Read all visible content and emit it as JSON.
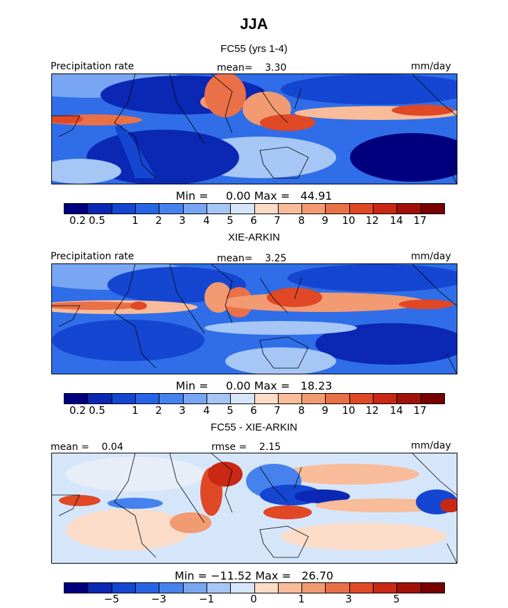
{
  "season_title": "JJA",
  "panels": [
    {
      "title": "FC55 (yrs 1-4)",
      "left_label": "Precipitation rate",
      "center_label": "mean=    3.30",
      "right_label": "mm/day",
      "stats": "Min =     0.00 Max =   44.91",
      "colorbar_ticks": [
        "0.2",
        "0.5",
        "1",
        "2",
        "3",
        "4",
        "5",
        "6",
        "7",
        "8",
        "9",
        "10",
        "12",
        "14",
        "17"
      ],
      "palette": "precip"
    },
    {
      "title": "XIE-ARKIN",
      "left_label": "Precipitation rate",
      "center_label": "mean=    3.25",
      "right_label": "mm/day",
      "stats": "Min =     0.00 Max =   18.23",
      "colorbar_ticks": [
        "0.2",
        "0.5",
        "1",
        "2",
        "3",
        "4",
        "5",
        "6",
        "7",
        "8",
        "9",
        "10",
        "12",
        "14",
        "17"
      ],
      "palette": "precip"
    },
    {
      "title": "FC55 - XIE-ARKIN",
      "left_label": "mean =    0.04",
      "center_label": "rmse =    2.15",
      "right_label": "mm/day",
      "stats": "Min = −11.52 Max =   26.70",
      "colorbar_ticks": [
        "−5",
        "−3",
        "−1",
        "0",
        "1",
        "3",
        "5"
      ],
      "palette": "diff"
    }
  ],
  "colors": {
    "precip": [
      "#00007e",
      "#0a28b4",
      "#1446d2",
      "#2864e6",
      "#4682ee",
      "#78a6f2",
      "#a6c6f6",
      "#d6e6fa",
      "#fadcc8",
      "#f8bc9a",
      "#f29a72",
      "#ea7048",
      "#e04826",
      "#c82814",
      "#a01208",
      "#780000"
    ],
    "diff": [
      "#00007e",
      "#0a28b4",
      "#1446d2",
      "#2864e6",
      "#4682ee",
      "#78a6f2",
      "#a6c6f6",
      "#d6e6fa",
      "#fadcc8",
      "#f8bc9a",
      "#f29a72",
      "#ea7048",
      "#e04826",
      "#c82814",
      "#a01208",
      "#780000"
    ]
  }
}
